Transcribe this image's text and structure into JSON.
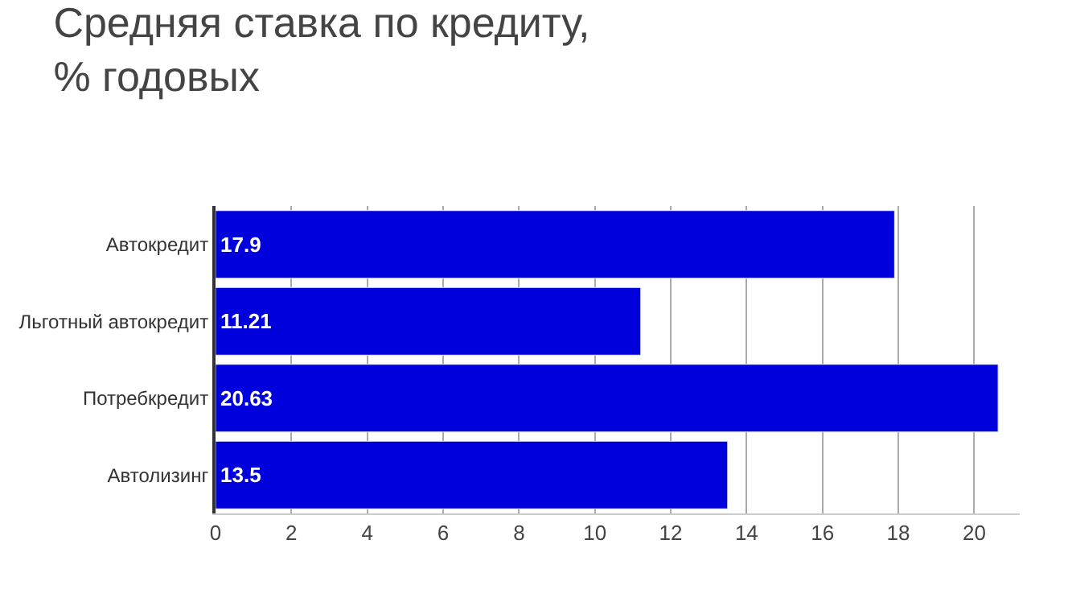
{
  "chart_data": {
    "type": "bar",
    "orientation": "horizontal",
    "title": "Средняя ставка по кредиту,\n% годовых",
    "categories": [
      "Автокредит",
      "Льготный автокредит",
      "Потребкредит",
      "Автолизинг"
    ],
    "values": [
      17.9,
      11.21,
      20.63,
      13.5
    ],
    "color": "#0000dd",
    "data_labels": true,
    "xlim": [
      0,
      21.2
    ],
    "xticks": [
      0,
      2,
      4,
      6,
      8,
      10,
      12,
      14,
      16,
      18,
      20
    ],
    "grid": "x"
  }
}
